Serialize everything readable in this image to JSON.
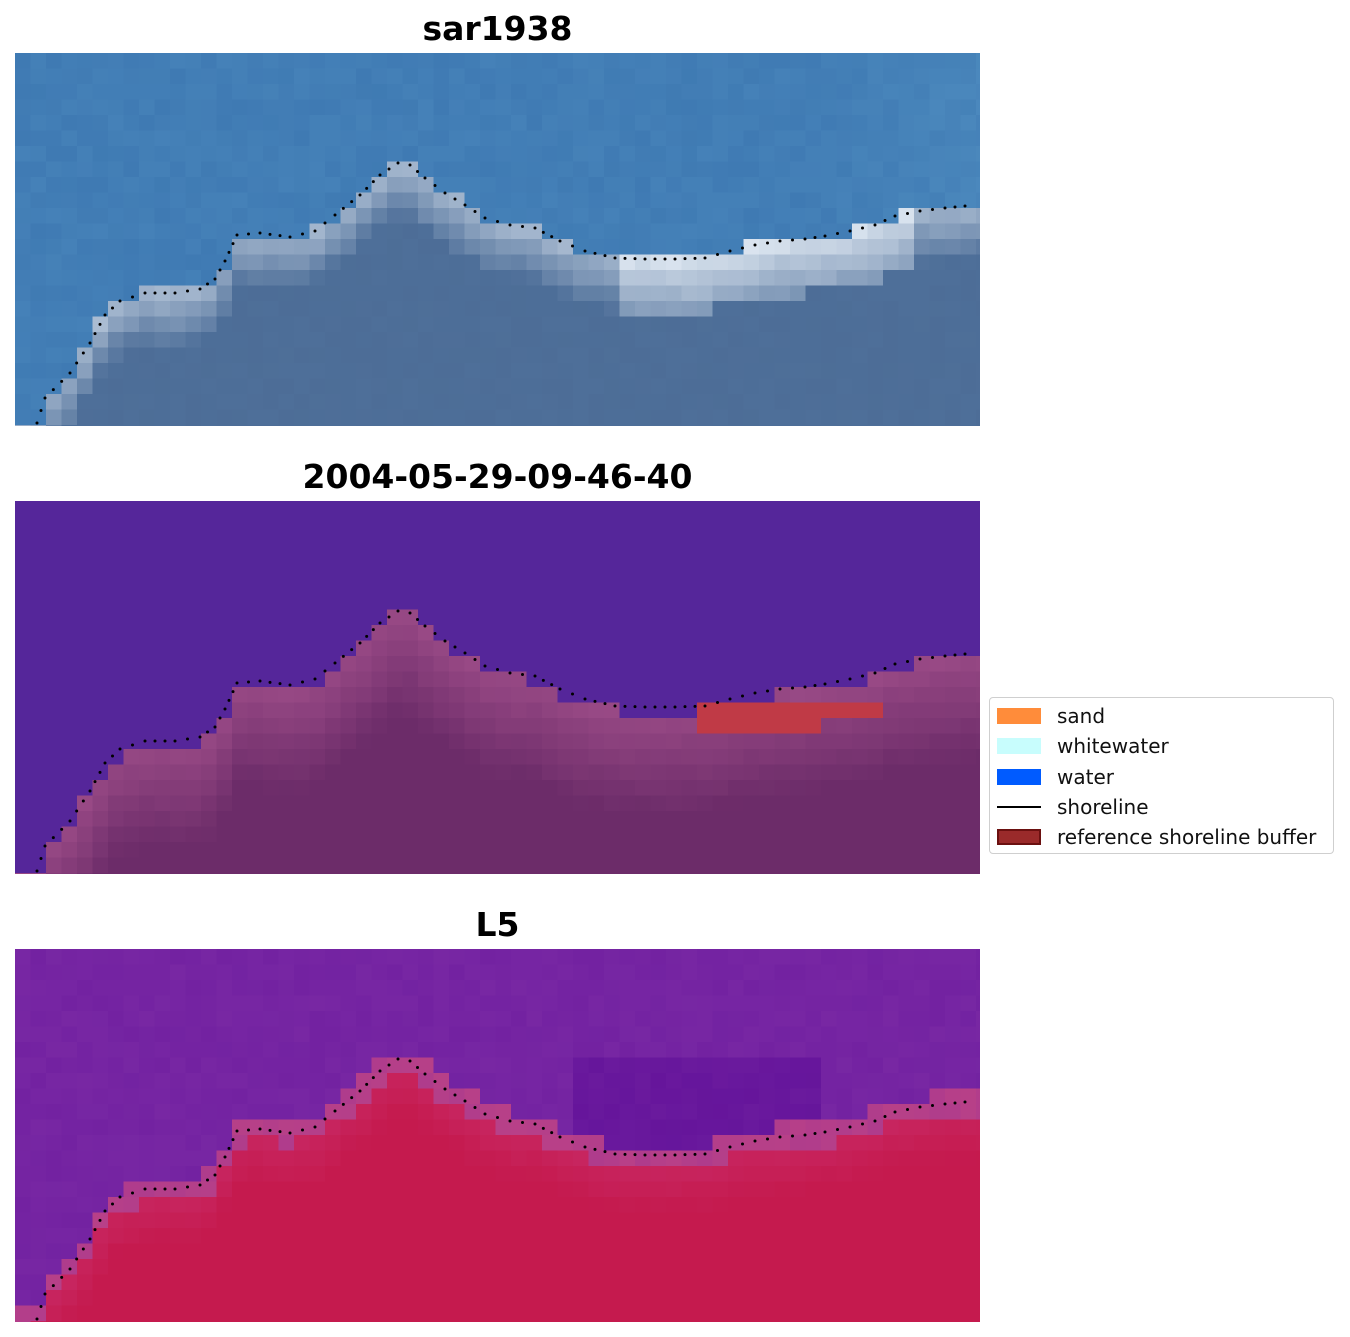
{
  "panels": [
    {
      "title": "sar1938",
      "kind": "rgb"
    },
    {
      "title": "2004-05-29-09-46-40",
      "kind": "classified"
    },
    {
      "title": "L5",
      "kind": "index"
    }
  ],
  "legend": {
    "items": [
      {
        "label": "sand",
        "color": "#ff8c3a",
        "type": "patch"
      },
      {
        "label": "whitewater",
        "color": "#c8fdfd",
        "type": "patch"
      },
      {
        "label": "water",
        "color": "#005bff",
        "type": "patch"
      },
      {
        "label": "shoreline",
        "color": "#000000",
        "type": "line"
      },
      {
        "label": "reference shoreline buffer",
        "color": "#9a2a2a",
        "type": "patch"
      }
    ]
  },
  "colors": {
    "rgb_water": "#3f7ab3",
    "rgb_surf": "#dfe8f2",
    "rgb_land": "#4e6f99",
    "class_water": "#55269a",
    "class_land": "#8a3e79",
    "class_buffer": "#c03a46",
    "index_water": "#7b2aa5",
    "index_land": "#c51a4e",
    "shoreline": "#000000"
  }
}
